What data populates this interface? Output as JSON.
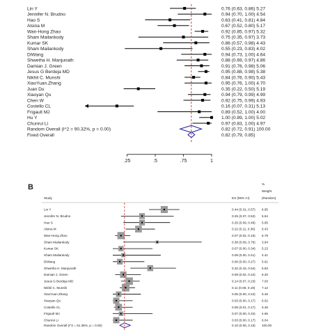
{
  "chart_data": [
    {
      "type": "forest",
      "title": "",
      "xlim": [
        0,
        1
      ],
      "ticks": [
        0.25,
        0.5,
        0.75,
        1
      ],
      "tick_labels": [
        ".25",
        ".5",
        ".75",
        "1"
      ],
      "reference_line": 0.82,
      "rows": [
        {
          "study": "Lin Y",
          "es": 0.76,
          "lo": 0.63,
          "hi": 0.86,
          "weight": "5.27",
          "label": "0.76 (0.63, 0.86) 5.27"
        },
        {
          "study": "Jennifer N. Brudno",
          "es": 0.94,
          "lo": 0.7,
          "hi": 1.0,
          "weight": "4.54",
          "label": "0.94 (0.70, 1.00) 4.54"
        },
        {
          "study": "Hao S",
          "es": 0.63,
          "lo": 0.41,
          "hi": 0.81,
          "weight": "4.84",
          "label": "0.63 (0.41, 0.81) 4.84"
        },
        {
          "study": "Alsina M",
          "es": 0.67,
          "lo": 0.52,
          "hi": 0.8,
          "weight": "5.17",
          "label": "0.67 (0.52, 0.80) 5.17"
        },
        {
          "study": "Wan-Hong Zhao",
          "es": 0.92,
          "es_note": "",
          "lo": 0.85,
          "hi": 0.97,
          "weight": "5.32",
          "label": "0.92 (0.85, 0.97) 5.32"
        },
        {
          "study": "Sham Mailankody",
          "es": 0.75,
          "lo": 0.35,
          "hi": 0.97,
          "weight": "3.73",
          "label": "0.75 (0.35, 0.97) 3.73"
        },
        {
          "study": "Kumar SK",
          "es": 0.86,
          "lo": 0.57,
          "hi": 0.98,
          "weight": "4.43",
          "label": "0.86 (0.57, 0.98) 4.43"
        },
        {
          "study": "Sham Mailankody",
          "es": 0.55,
          "lo": 0.23,
          "hi": 0.83,
          "weight": "4.02",
          "label": "0.55 (0.23, 0.83) 4.02"
        },
        {
          "study": "DiWang",
          "es": 0.94,
          "lo": 0.73,
          "hi": 1.0,
          "weight": "4.64",
          "label": "0.94 (0.73, 1.00) 4.64"
        },
        {
          "study": "Shwetha H. Manjunath",
          "es": 0.88,
          "lo": 0.69,
          "hi": 0.97,
          "weight": "4.86",
          "label": "0.88 (0.69, 0.97) 4.86"
        },
        {
          "study": "Damian J. Green",
          "es": 0.91,
          "lo": 0.76,
          "hi": 0.98,
          "weight": "5.06",
          "label": "0.91 (0.76, 0.98) 5.06"
        },
        {
          "study": "Jesus G Berdeja MD",
          "es": 0.95,
          "lo": 0.88,
          "hi": 0.98,
          "weight": "5.38",
          "label": "0.95 (0.88, 0.98) 5.38"
        },
        {
          "study": "Nikhil C. Munshi",
          "es": 0.84,
          "lo": 0.76,
          "hi": 0.9,
          "weight": "5.43",
          "label": "0.84 (0.76, 0.90) 5.43"
        },
        {
          "study": "XiaoYuan.Zhang",
          "es": 0.95,
          "lo": 0.76,
          "hi": 1.0,
          "weight": "4.70",
          "label": "0.95 (0.76, 1.00) 4.70"
        },
        {
          "study": "Juan Du",
          "es": 0.35,
          "lo": 0.22,
          "hi": 0.5,
          "weight": "5.19",
          "label": "0.35 (0.22, 0.50) 5.19"
        },
        {
          "study": "Xiaoyan Qu",
          "es": 0.94,
          "lo": 0.79,
          "hi": 0.99,
          "weight": "4.99",
          "label": "0.94 (0.79, 0.99) 4.99"
        },
        {
          "study": "Chen W",
          "es": 0.92,
          "lo": 0.75,
          "hi": 0.99,
          "weight": "4.93",
          "label": "0.92 (0.75, 0.99) 4.93"
        },
        {
          "study": "Costello CL",
          "es": 0.16,
          "lo": 0.07,
          "hi": 0.31,
          "weight": "5.13",
          "label": "0.16 (0.07, 0.31) 5.13",
          "arrow_left": true
        },
        {
          "study": "Frigault MJ",
          "es": 0.89,
          "lo": 0.52,
          "hi": 1.0,
          "weight": "4.00",
          "label": "0.89 (0.52, 1.00) 4.00"
        },
        {
          "study": "Hu Y",
          "es": 1.0,
          "lo": 0.89,
          "hi": 1.0,
          "weight": "5.02",
          "label": "1.00 (0.89, 1.00) 5.02"
        },
        {
          "study": "Chunrui Li",
          "es": 0.97,
          "lo": 0.83,
          "hi": 1.0,
          "weight": "4.97",
          "label": "0.97 (0.83, 1.00) 4.97"
        }
      ],
      "overall": [
        {
          "study": "Random Overall  (I^2 = 90.32%, p = 0.00)",
          "es": 0.82,
          "lo": 0.72,
          "hi": 0.91,
          "label": "0.82 (0.72, 0.91) 100.00"
        },
        {
          "study": "Fixed Overall",
          "es": 0.82,
          "lo": 0.79,
          "hi": 0.85,
          "label": "0.82 (0.79, 0.85)"
        }
      ]
    },
    {
      "type": "forest",
      "panel_label": "B",
      "title": "",
      "xlim": [
        0,
        1
      ],
      "reference_line": 0.1,
      "header": {
        "study": "Study",
        "es": "ES (95% CI)",
        "weight_line1": "%",
        "weight_line2": "Weight",
        "weight_line3": "(Random)"
      },
      "rows": [
        {
          "study": "Lin Y",
          "es": 0.44,
          "lo": 0.31,
          "hi": 0.57,
          "label": "0.44 (0.31, 0.57)",
          "weight": "6.65"
        },
        {
          "study": "Jennifer N. Brudno",
          "es": 0.25,
          "lo": 0.07,
          "hi": 0.52,
          "label": "0.25 (0.07, 0.52)",
          "weight": "5.64"
        },
        {
          "study": "Hao S",
          "es": 0.25,
          "lo": 0.09,
          "hi": 0.49,
          "label": "0.25 (0.09, 0.49)",
          "weight": "5.65"
        },
        {
          "study": "Alsina M",
          "es": 0.22,
          "lo": 0.11,
          "hi": 0.36,
          "label": "0.22 (0.11, 0.36)",
          "weight": "6.43"
        },
        {
          "study": "Wan-Hong Zhao",
          "es": 0.07,
          "lo": 0.02,
          "hi": 0.15,
          "label": "0.07 (0.02, 0.15)",
          "weight": "6.79"
        },
        {
          "study": "Sham Mailankody",
          "es": 0.38,
          "lo": 0.09,
          "hi": 0.76,
          "label": "0.38 (0.09, 0.76)",
          "weight": "3.64"
        },
        {
          "study": "Kumar SK",
          "es": 0.07,
          "lo": 0.0,
          "hi": 0.34,
          "label": "0.07 (0.00, 0.34)",
          "weight": "5.23"
        },
        {
          "study": "Sham Mailankody",
          "es": 0.09,
          "lo": 0.0,
          "hi": 0.41,
          "label": "0.09 (0.00, 0.41)",
          "weight": "4.41"
        },
        {
          "study": "DiWang",
          "es": 0.06,
          "lo": 0.0,
          "hi": 0.27,
          "label": "0.06 (0.00, 0.27)",
          "weight": "5.61"
        },
        {
          "study": "Shwetha H. Manjunath",
          "es": 0.32,
          "lo": 0.15,
          "hi": 0.54,
          "label": "0.32 (0.15, 0.54)",
          "weight": "5.83"
        },
        {
          "study": "Damian J. Green",
          "es": 0.09,
          "lo": 0.02,
          "hi": 0.24,
          "label": "0.09 (0.02, 0.24)",
          "weight": "6.20"
        },
        {
          "study": "Jesus G Berdeja MD",
          "es": 0.14,
          "lo": 0.07,
          "hi": 0.23,
          "label": "0.14 (0.07, 0.23)",
          "weight": "7.03"
        },
        {
          "study": "Nikhil C. Munshi",
          "es": 0.11,
          "lo": 0.06,
          "hi": 0.19,
          "label": "0.11 (0.06, 0.19)",
          "weight": "7.12"
        },
        {
          "study": "XiaoYuan.Zhang",
          "es": 0.05,
          "lo": 0.0,
          "hi": 0.24,
          "label": "0.05 (0.00, 0.24)",
          "weight": "5.46"
        },
        {
          "study": "Xiaoyan Qu",
          "es": 0.03,
          "lo": 0.0,
          "hi": 0.17,
          "label": "0.03 (0.00, 0.17)",
          "weight": "6.02"
        },
        {
          "study": "Costello CL",
          "es": 0.05,
          "lo": 0.01,
          "hi": 0.17,
          "label": "0.05 (0.01, 0.17)",
          "weight": "6.48"
        },
        {
          "study": "Frigault MJ",
          "es": 0.07,
          "lo": 0.0,
          "hi": 0.34,
          "label": "0.07 (0.00, 0.34)",
          "weight": "4.65"
        },
        {
          "study": "Chunrui Li",
          "es": 0.03,
          "lo": 0.0,
          "hi": 0.17,
          "label": "0.03 (0.00, 0.17)",
          "weight": "6.04"
        }
      ],
      "overall": [
        {
          "study": "Random Overall  (I^2 = 61.38%, p = 0.00)",
          "es": 0.1,
          "lo": 0.06,
          "hi": 0.15,
          "label": "0.10 (0.06, 0.15)",
          "weight": "100.00"
        }
      ]
    }
  ]
}
